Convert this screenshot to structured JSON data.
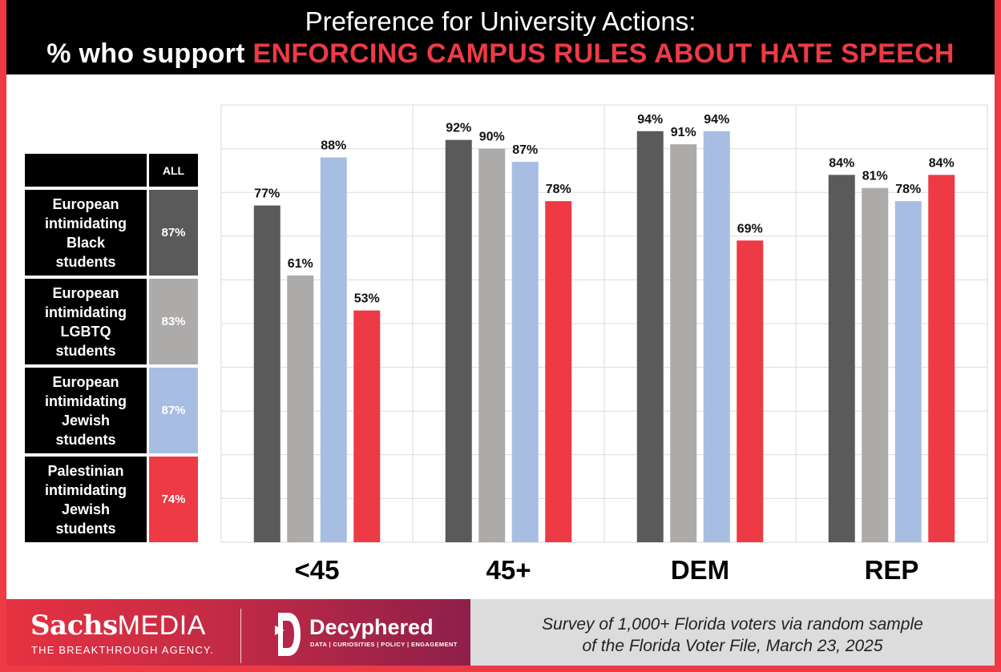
{
  "title": {
    "line1": "Preference for University Actions:",
    "line2_prefix": "% who support ",
    "line2_highlight": "ENFORCING CAMPUS RULES ABOUT HATE SPEECH"
  },
  "legend": {
    "header": "ALL",
    "items": [
      {
        "label_lines": [
          "European",
          "intimidating",
          "Black",
          "students"
        ],
        "value": "87%",
        "color": "#5a5a5a"
      },
      {
        "label_lines": [
          "European",
          "intimidating",
          "LGBTQ",
          "students"
        ],
        "value": "83%",
        "color": "#adaaaa"
      },
      {
        "label_lines": [
          "European",
          "intimidating",
          "Jewish",
          "students"
        ],
        "value": "87%",
        "color": "#a8bde2"
      },
      {
        "label_lines": [
          "Palestinian",
          "intimidating",
          "Jewish",
          "students"
        ],
        "value": "74%",
        "color": "#ee3a45"
      }
    ]
  },
  "chart_data": {
    "type": "bar",
    "title": "Preference for University Actions: % who support ENFORCING CAMPUS RULES ABOUT HATE SPEECH",
    "categories": [
      "<45",
      "45+",
      "DEM",
      "REP"
    ],
    "ylim": [
      0,
      100
    ],
    "grid": true,
    "legend_position": "left",
    "series": [
      {
        "name": "European intimidating Black students",
        "color": "#5a5a5a",
        "values": [
          77,
          92,
          94,
          84
        ],
        "labels": [
          "77%",
          "92%",
          "94%",
          "84%"
        ]
      },
      {
        "name": "European intimidating LGBTQ students",
        "color": "#adaaaa",
        "values": [
          61,
          90,
          91,
          81
        ],
        "labels": [
          "61%",
          "90%",
          "91%",
          "81%"
        ]
      },
      {
        "name": "European intimidating Jewish students",
        "color": "#a8bde2",
        "values": [
          88,
          87,
          94,
          78
        ],
        "labels": [
          "88%",
          "87%",
          "94%",
          "78%"
        ]
      },
      {
        "name": "Palestinian intimidating Jewish students",
        "color": "#ee3a45",
        "values": [
          53,
          78,
          69,
          84
        ],
        "labels": [
          "53%",
          "78%",
          "69%",
          "84%"
        ]
      }
    ]
  },
  "footer": {
    "brand1_bold": "Sachs",
    "brand1_thin": "MEDIA",
    "brand1_tagline": "THE BREAKTHROUGH AGENCY.",
    "brand2": "Decyphered",
    "brand2_tagline": "DATA | CURIOSITIES | POLICY | ENGAGEMENT",
    "note_line1": "Survey of  1,000+ Florida voters via random sample",
    "note_line2": "of  the Florida Voter File, March 23, 2025"
  }
}
